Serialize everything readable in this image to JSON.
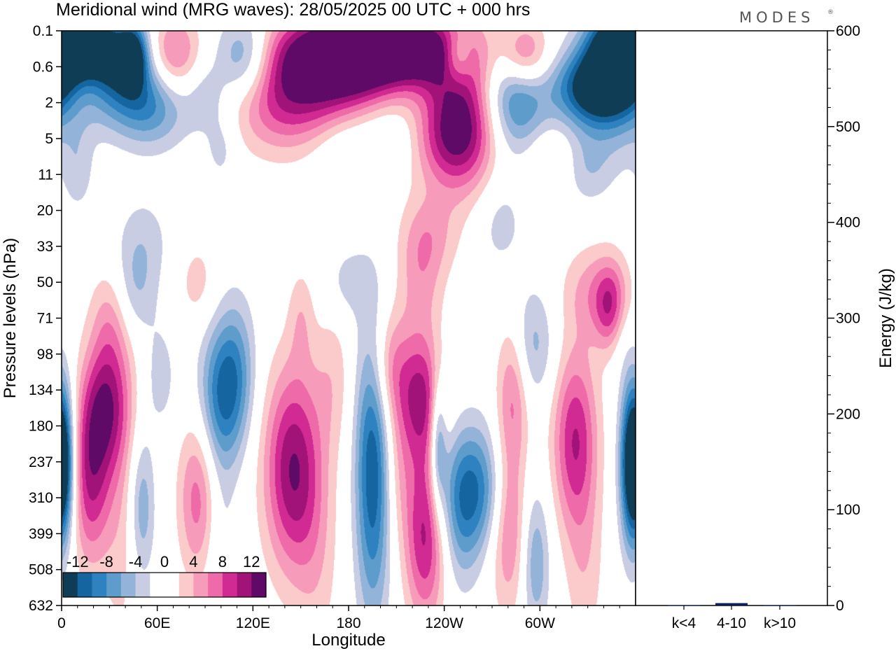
{
  "title": "Meridional wind (MRG waves):  28/05/2025  00 UTC  + 000 hrs",
  "logo": "MODES",
  "logo_mark": "®",
  "chart_data": [
    {
      "type": "heatmap",
      "title": "Meridional wind (MRG waves):  28/05/2025  00 UTC  + 000 hrs",
      "xlabel": "Longitude",
      "ylabel": "Pressure levels (hPa)",
      "x_ticks": [
        "0",
        "60E",
        "120E",
        "180",
        "120W",
        "60W"
      ],
      "y_ticks": [
        "0.1",
        "0.6",
        "2",
        "5",
        "11",
        "20",
        "33",
        "50",
        "71",
        "98",
        "134",
        "180",
        "237",
        "310",
        "399",
        "508",
        "632"
      ],
      "colorbar": {
        "labels": [
          "-12",
          "-8",
          "-4",
          "0",
          "4",
          "8",
          "12"
        ],
        "colors": [
          "#0f3d55",
          "#1565a0",
          "#2e82c0",
          "#5e9ccc",
          "#93b3d8",
          "#c8cde4",
          "#ffffff",
          "#ffffff",
          "#fbcaca",
          "#f79bbb",
          "#ee6aa8",
          "#d12a92",
          "#a2137a",
          "#5e0a66"
        ]
      },
      "blobs": [
        {
          "lon": 15,
          "lev": 0.4,
          "v": -14,
          "w": 30,
          "h": 1.2
        },
        {
          "lon": 35,
          "lev": 0.4,
          "v": -6,
          "w": 35,
          "h": 1.5
        },
        {
          "lon": 45,
          "lev": 0.35,
          "v": -9,
          "w": 8,
          "h": 0.8
        },
        {
          "lon": 68,
          "lev": 0.35,
          "v": 10,
          "w": 18,
          "h": 1.2
        },
        {
          "lon": 115,
          "lev": 0.4,
          "v": -9,
          "w": 18,
          "h": 1.2
        },
        {
          "lon": 165,
          "lev": 0.25,
          "v": 9,
          "w": 40,
          "h": 1.1
        },
        {
          "lon": 195,
          "lev": 0.3,
          "v": 13,
          "w": 35,
          "h": 1.1
        },
        {
          "lon": 230,
          "lev": 0.25,
          "v": 9,
          "w": 30,
          "h": 1.0
        },
        {
          "lon": 248,
          "lev": 0.35,
          "v": -8,
          "w": 10,
          "h": 0.8
        },
        {
          "lon": 290,
          "lev": 0.35,
          "v": 10,
          "w": 16,
          "h": 1.0
        },
        {
          "lon": 350,
          "lev": 0.2,
          "v": -16,
          "w": 20,
          "h": 1.0
        },
        {
          "lon": 15,
          "lev": 1.0,
          "v": 6,
          "w": 16,
          "h": 0.8
        },
        {
          "lon": 55,
          "lev": 2.0,
          "v": -8,
          "w": 25,
          "h": 1.2
        },
        {
          "lon": 90,
          "lev": 1.5,
          "v": -3,
          "w": 12,
          "h": 1.0
        },
        {
          "lon": 135,
          "lev": 1.5,
          "v": 9,
          "w": 30,
          "h": 1.5
        },
        {
          "lon": 165,
          "lev": 1.6,
          "v": 5,
          "w": 25,
          "h": 1.5
        },
        {
          "lon": 185,
          "lev": 1.4,
          "v": 3,
          "w": 25,
          "h": 1.0
        },
        {
          "lon": 250,
          "lev": 2.5,
          "v": 11,
          "w": 22,
          "h": 2.2
        },
        {
          "lon": 285,
          "lev": 1.5,
          "v": -10,
          "w": 20,
          "h": 1.6
        },
        {
          "lon": 335,
          "lev": 1.2,
          "v": -14,
          "w": 25,
          "h": 1.0
        },
        {
          "lon": 345,
          "lev": 3.0,
          "v": -4,
          "w": 25,
          "h": 1.5
        },
        {
          "lon": 100,
          "lev": 6.0,
          "v": -3,
          "w": 10,
          "h": 1.0
        },
        {
          "lon": 175,
          "lev": 6.0,
          "v": -3,
          "w": 20,
          "h": 1.2
        },
        {
          "lon": 210,
          "lev": 5.0,
          "v": -3,
          "w": 20,
          "h": 1.0
        },
        {
          "lon": 240,
          "lev": 5.0,
          "v": 5,
          "w": 30,
          "h": 1.2
        },
        {
          "lon": 305,
          "lev": 8.0,
          "v": 3,
          "w": 15,
          "h": 1.0
        },
        {
          "lon": 330,
          "lev": 10.0,
          "v": -3,
          "w": 15,
          "h": 1.0
        },
        {
          "lon": 10,
          "lev": 10.0,
          "v": -3,
          "w": 10,
          "h": 1.2
        },
        {
          "lon": 50,
          "lev": 30.0,
          "v": -3,
          "w": 18,
          "h": 1.3
        },
        {
          "lon": 230,
          "lev": 28.0,
          "v": 4,
          "w": 18,
          "h": 1.2
        },
        {
          "lon": 275,
          "lev": 24.0,
          "v": -3,
          "w": 15,
          "h": 1.3
        },
        {
          "lon": 225,
          "lev": 50.0,
          "v": 4,
          "w": 14,
          "h": 1.5
        },
        {
          "lon": 45,
          "lev": 55.0,
          "v": -4,
          "w": 14,
          "h": 1.3
        },
        {
          "lon": 85,
          "lev": 50.0,
          "v": 3,
          "w": 12,
          "h": 1.2
        },
        {
          "lon": 335,
          "lev": 55.0,
          "v": 5,
          "w": 20,
          "h": 1.3
        },
        {
          "lon": 345,
          "lev": 65.0,
          "v": 8,
          "w": 10,
          "h": 1.2
        },
        {
          "lon": 180,
          "lev": 50.0,
          "v": -3,
          "w": 14,
          "h": 1.0
        },
        {
          "lon": 30,
          "lev": 70.0,
          "v": 4,
          "w": 12,
          "h": 1.5
        },
        {
          "lon": 150,
          "lev": 70.0,
          "v": 3,
          "w": 8,
          "h": 1.4
        },
        {
          "lon": 295,
          "lev": 90.0,
          "v": -5,
          "w": 14,
          "h": 1.6
        },
        {
          "lon": 350,
          "lev": 75.0,
          "v": -3,
          "w": 8,
          "h": 1.2
        },
        {
          "lon": 28,
          "lev": 150.0,
          "v": 9,
          "w": 14,
          "h": 1.8
        },
        {
          "lon": 18,
          "lev": 260.0,
          "v": 10,
          "w": 13,
          "h": 2.5
        },
        {
          "lon": 38,
          "lev": 300.0,
          "v": 3,
          "w": 12,
          "h": 5.0
        },
        {
          "lon": 0,
          "lev": 240.0,
          "v": -12,
          "w": 8,
          "h": 2.0
        },
        {
          "lon": 50,
          "lev": 330.0,
          "v": -6,
          "w": 8,
          "h": 2.0
        },
        {
          "lon": 85,
          "lev": 310.0,
          "v": 7,
          "w": 12,
          "h": 2.2
        },
        {
          "lon": 100,
          "lev": 140.0,
          "v": -9,
          "w": 14,
          "h": 2.0
        },
        {
          "lon": 110,
          "lev": 110.0,
          "v": -5,
          "w": 12,
          "h": 2.0
        },
        {
          "lon": 62,
          "lev": 120.0,
          "v": -3,
          "w": 10,
          "h": 1.5
        },
        {
          "lon": 145,
          "lev": 250.0,
          "v": 12,
          "w": 18,
          "h": 2.8
        },
        {
          "lon": 170,
          "lev": 120.0,
          "v": 3,
          "w": 12,
          "h": 2.0
        },
        {
          "lon": 195,
          "lev": 250.0,
          "v": -12,
          "w": 11,
          "h": 4.0
        },
        {
          "lon": 205,
          "lev": 110.0,
          "v": 6,
          "w": 12,
          "h": 1.6
        },
        {
          "lon": 225,
          "lev": 140.0,
          "v": 10,
          "w": 14,
          "h": 1.8
        },
        {
          "lon": 236,
          "lev": 200.0,
          "v": -8,
          "w": 5,
          "h": 1.8
        },
        {
          "lon": 228,
          "lev": 390.0,
          "v": 11,
          "w": 13,
          "h": 2.5
        },
        {
          "lon": 210,
          "lev": 250.0,
          "v": 3,
          "w": 10,
          "h": 2.0
        },
        {
          "lon": 258,
          "lev": 290.0,
          "v": -10,
          "w": 22,
          "h": 1.8
        },
        {
          "lon": 250,
          "lev": 400.0,
          "v": -3,
          "w": 12,
          "h": 2.0
        },
        {
          "lon": 283,
          "lev": 130.0,
          "v": 6,
          "w": 10,
          "h": 2.0
        },
        {
          "lon": 280,
          "lev": 350.0,
          "v": 8,
          "w": 12,
          "h": 2.5
        },
        {
          "lon": 297,
          "lev": 480.0,
          "v": -6,
          "w": 9,
          "h": 2.0
        },
        {
          "lon": 322,
          "lev": 200.0,
          "v": 10,
          "w": 14,
          "h": 2.5
        },
        {
          "lon": 328,
          "lev": 520.0,
          "v": 3,
          "w": 12,
          "h": 2.5
        },
        {
          "lon": 358,
          "lev": 240.0,
          "v": -10,
          "w": 8,
          "h": 2.4
        },
        {
          "lon": 160,
          "lev": 500.0,
          "v": 2.5,
          "w": 14,
          "h": 3.0
        },
        {
          "lon": 100,
          "lev": 450.0,
          "v": -2.5,
          "w": 10,
          "h": 3.0
        }
      ]
    },
    {
      "type": "bar",
      "ylabel": "Energy (J/kg)",
      "categories": [
        "k<4",
        "4-10",
        "k>10"
      ],
      "values": [
        0.4,
        2.5,
        0.3
      ],
      "ylim": [
        0,
        600
      ],
      "y_ticks": [
        "0",
        "100",
        "200",
        "300",
        "400",
        "500",
        "600"
      ],
      "bar_color": "#0b1f66"
    }
  ]
}
